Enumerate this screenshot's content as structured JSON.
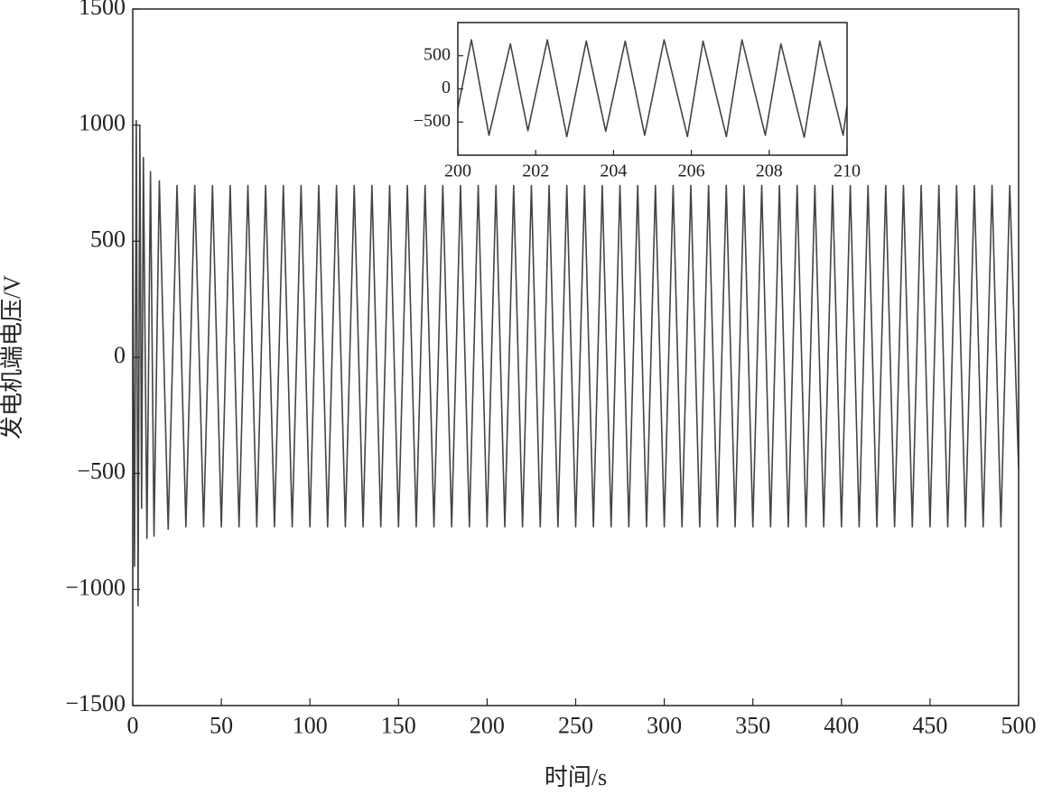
{
  "chart_data": [
    {
      "type": "line",
      "xlabel": "时间/s",
      "ylabel": "发电机端电压/V",
      "color": "#444444",
      "xlim": [
        0,
        500
      ],
      "xticks": [
        0,
        50,
        100,
        150,
        200,
        250,
        300,
        350,
        400,
        450,
        500
      ],
      "ylim": [
        -1500,
        1500
      ],
      "yticks": [
        {
          "value": -1500,
          "label": "−1500"
        },
        {
          "value": -1000,
          "label": "−1000"
        },
        {
          "value": -500,
          "label": "−500"
        },
        0,
        500,
        1000,
        1500
      ],
      "x": [
        0,
        1,
        2,
        3,
        4,
        5,
        6,
        8,
        10,
        12,
        15,
        20,
        25,
        30,
        35,
        40,
        45,
        50,
        55,
        60,
        65,
        70,
        75,
        80,
        85,
        90,
        95,
        100,
        105,
        110,
        115,
        120,
        125,
        130,
        135,
        140,
        145,
        150,
        155,
        160,
        165,
        170,
        175,
        180,
        185,
        190,
        195,
        200,
        205,
        210,
        215,
        220,
        225,
        230,
        235,
        240,
        245,
        250,
        255,
        260,
        265,
        270,
        275,
        280,
        285,
        290,
        295,
        300,
        305,
        310,
        315,
        320,
        325,
        330,
        335,
        340,
        345,
        350,
        355,
        360,
        365,
        370,
        375,
        380,
        385,
        390,
        395,
        400,
        405,
        410,
        415,
        420,
        425,
        430,
        435,
        440,
        445,
        450,
        455,
        460,
        465,
        470,
        475,
        480,
        485,
        490,
        495,
        500
      ],
      "values": [
        500,
        -900,
        1020,
        -1070,
        1000,
        -650,
        860,
        -780,
        800,
        -770,
        760,
        -740,
        740,
        -730,
        740,
        -730,
        740,
        -730,
        740,
        -730,
        740,
        -730,
        740,
        -730,
        740,
        -730,
        740,
        -730,
        740,
        -730,
        740,
        -730,
        740,
        -730,
        740,
        -730,
        740,
        -730,
        740,
        -730,
        740,
        -730,
        740,
        -730,
        740,
        -730,
        740,
        -730,
        740,
        -730,
        740,
        -730,
        740,
        -730,
        740,
        -730,
        740,
        -730,
        740,
        -730,
        740,
        -730,
        740,
        -730,
        740,
        -730,
        740,
        -730,
        740,
        -730,
        740,
        -730,
        740,
        -730,
        740,
        -730,
        740,
        -730,
        740,
        -730,
        740,
        -730,
        740,
        -730,
        740,
        -730,
        740,
        -730,
        740,
        -730,
        740,
        -730,
        740,
        -730,
        740,
        -730,
        740,
        -730,
        740,
        -730,
        740,
        -730,
        740,
        -730,
        740,
        -730,
        740,
        -480
      ]
    },
    {
      "type": "line",
      "color": "#444444",
      "xlim": [
        200,
        210
      ],
      "xticks": [
        200,
        202,
        204,
        206,
        208,
        210
      ],
      "ylim": [
        -1000,
        1000
      ],
      "yticks": [
        {
          "value": -500,
          "label": "−500"
        },
        0,
        500
      ],
      "x": [
        200,
        200.35,
        200.8,
        201.35,
        201.8,
        202.3,
        202.8,
        203.3,
        203.8,
        204.3,
        204.8,
        205.3,
        205.9,
        206.3,
        206.9,
        207.3,
        207.9,
        208.3,
        208.9,
        209.3,
        209.9,
        210
      ],
      "values": [
        -300,
        740,
        -700,
        680,
        -630,
        740,
        -720,
        720,
        -640,
        720,
        -700,
        740,
        -720,
        720,
        -720,
        740,
        -700,
        680,
        -730,
        720,
        -700,
        -250
      ]
    }
  ]
}
